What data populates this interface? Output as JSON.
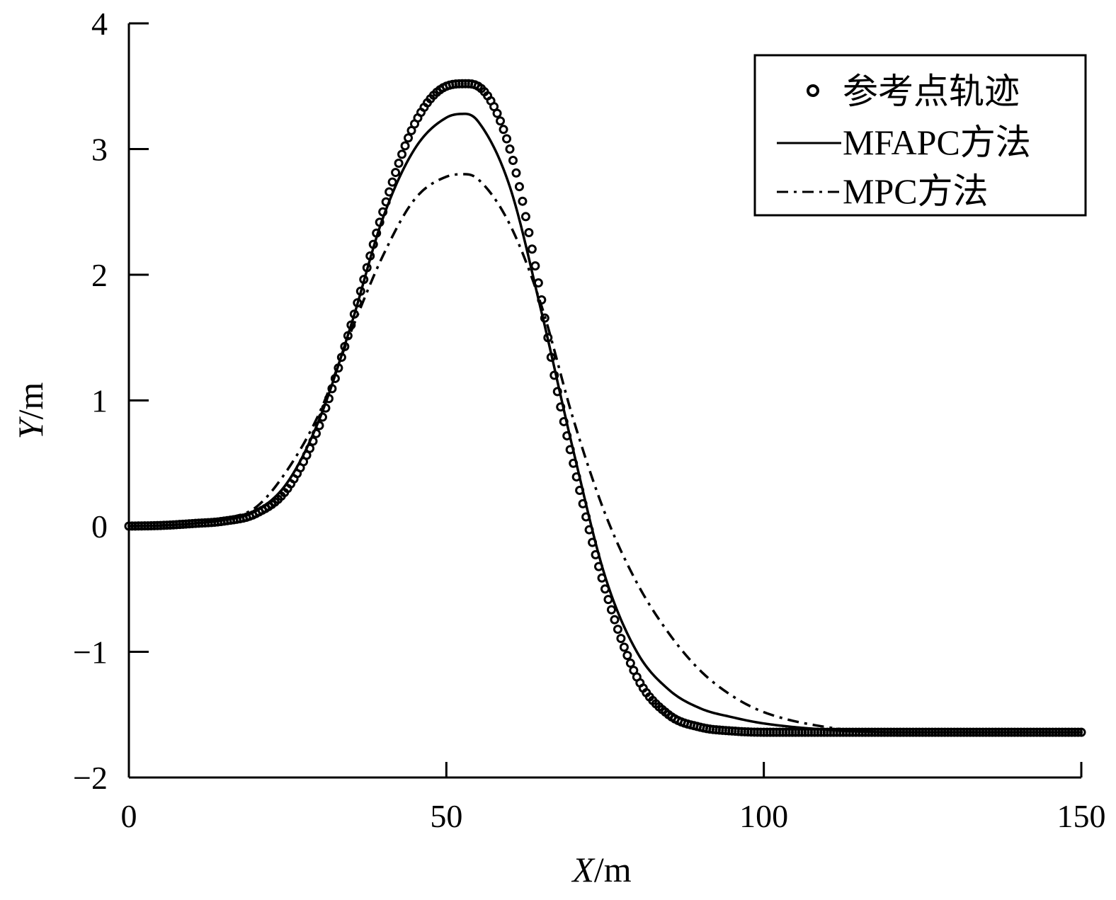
{
  "chart_data": {
    "type": "line",
    "title": "",
    "xlabel_italic": "X",
    "xlabel_unit": "/m",
    "ylabel_italic": "Y",
    "ylabel_unit": "/m",
    "xlim": [
      0,
      150
    ],
    "ylim": [
      -2,
      4
    ],
    "xticks": [
      0,
      50,
      100,
      150
    ],
    "xtick_labels": [
      "0",
      "50",
      "100",
      "150"
    ],
    "yticks": [
      -2,
      -1,
      0,
      1,
      2,
      3,
      4
    ],
    "ytick_labels": [
      "−2",
      "−1",
      "0",
      "1",
      "2",
      "3",
      "4"
    ],
    "grid": false,
    "legend_position": "top-right",
    "series": [
      {
        "name": "参考点轨迹",
        "style": "circle-markers",
        "color": "#000000",
        "x": [
          0,
          5,
          10,
          15,
          20,
          25,
          30,
          35,
          40,
          45,
          50,
          53,
          55,
          60,
          65,
          67,
          70,
          75,
          80,
          85,
          90,
          95,
          100,
          110,
          120,
          130,
          140,
          150
        ],
        "y": [
          0.0,
          0.005,
          0.02,
          0.04,
          0.1,
          0.3,
          0.8,
          1.6,
          2.5,
          3.2,
          3.5,
          3.52,
          3.5,
          3.0,
          1.8,
          1.2,
          0.5,
          -0.5,
          -1.2,
          -1.5,
          -1.6,
          -1.63,
          -1.64,
          -1.64,
          -1.64,
          -1.64,
          -1.64,
          -1.64
        ]
      },
      {
        "name": "MFAPC方法",
        "style": "solid",
        "color": "#000000",
        "x": [
          0,
          5,
          10,
          15,
          20,
          25,
          30,
          35,
          40,
          45,
          50,
          53,
          55,
          60,
          65,
          70,
          75,
          80,
          85,
          90,
          95,
          100,
          110,
          120,
          130,
          140,
          150
        ],
        "y": [
          0.0,
          0.005,
          0.02,
          0.05,
          0.12,
          0.35,
          0.85,
          1.6,
          2.45,
          3.0,
          3.25,
          3.28,
          3.22,
          2.7,
          1.7,
          0.6,
          -0.4,
          -1.0,
          -1.3,
          -1.45,
          -1.52,
          -1.57,
          -1.62,
          -1.64,
          -1.64,
          -1.64,
          -1.64
        ]
      },
      {
        "name": "MPC方法",
        "style": "dash-dot",
        "color": "#000000",
        "x": [
          0,
          5,
          10,
          15,
          20,
          25,
          30,
          35,
          40,
          45,
          50,
          53,
          55,
          60,
          65,
          70,
          75,
          80,
          85,
          90,
          95,
          100,
          110,
          120,
          130,
          140,
          150
        ],
        "y": [
          0.0,
          0.005,
          0.02,
          0.06,
          0.15,
          0.45,
          0.9,
          1.55,
          2.15,
          2.6,
          2.78,
          2.8,
          2.76,
          2.4,
          1.75,
          0.85,
          0.1,
          -0.45,
          -0.85,
          -1.15,
          -1.35,
          -1.48,
          -1.6,
          -1.64,
          -1.64,
          -1.64,
          -1.64
        ]
      }
    ]
  }
}
